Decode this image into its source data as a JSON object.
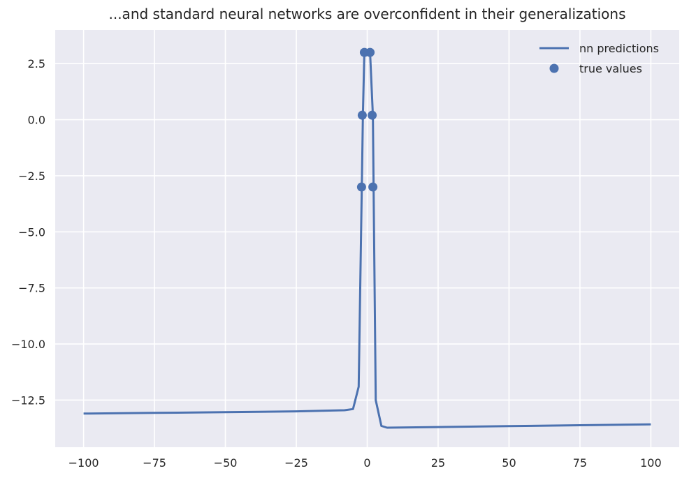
{
  "chart_data": {
    "type": "line",
    "title": "...and standard neural networks are overconfident in their generalizations",
    "xlabel": "",
    "ylabel": "",
    "xlim": [
      -110,
      110
    ],
    "ylim": [
      -14.6,
      4.0
    ],
    "x_ticks": [
      -100,
      -75,
      -50,
      -25,
      0,
      25,
      50,
      75,
      100
    ],
    "x_tick_labels": [
      "−100",
      "−75",
      "−50",
      "−25",
      "0",
      "25",
      "50",
      "75",
      "100"
    ],
    "y_ticks": [
      2.5,
      0.0,
      -2.5,
      -5.0,
      -7.5,
      -10.0,
      -12.5
    ],
    "y_tick_labels": [
      "2.5",
      "0.0",
      "−2.5",
      "−5.0",
      "−7.5",
      "−10.0",
      "−12.5"
    ],
    "grid": true,
    "legend_position": "top-right",
    "series": [
      {
        "name": "nn predictions",
        "kind": "line",
        "color": "#4c72b0",
        "x": [
          -100,
          -75,
          -50,
          -25,
          -8,
          -5,
          -3,
          -1.5,
          -1,
          0,
          1,
          2,
          3,
          5,
          7,
          25,
          50,
          75,
          100
        ],
        "y": [
          -13.1,
          -13.07,
          -13.04,
          -13.0,
          -12.95,
          -12.9,
          -11.9,
          0.3,
          3.0,
          3.0,
          3.0,
          0.2,
          -12.5,
          -13.65,
          -13.73,
          -13.7,
          -13.66,
          -13.62,
          -13.58
        ]
      },
      {
        "name": "true values",
        "kind": "scatter",
        "color": "#4c72b0",
        "x": [
          -2,
          -1.75,
          -1,
          1,
          1.75,
          2
        ],
        "y": [
          -3.0,
          0.2,
          3.0,
          3.0,
          0.2,
          -3.0
        ]
      }
    ]
  },
  "colors": {
    "background": "#eaeaf2",
    "grid": "#ffffff",
    "line": "#4c72b0"
  }
}
